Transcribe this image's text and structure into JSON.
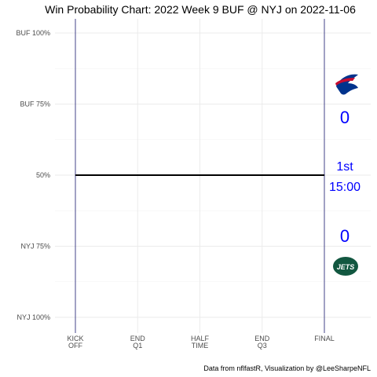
{
  "chart_data": {
    "type": "line",
    "title": "Win Probability Chart: 2022 Week 9 BUF @ NYJ on 2022-11-06",
    "caption": "Data from nflfastR, Visualization by @LeeSharpeNFL",
    "y_ticks": [
      {
        "value": 1.0,
        "label": "BUF 100%"
      },
      {
        "value": 0.75,
        "label": "BUF 75%"
      },
      {
        "value": 0.5,
        "label": "50%"
      },
      {
        "value": 0.25,
        "label": "NYJ 75%"
      },
      {
        "value": 0.0,
        "label": "NYJ 100%"
      }
    ],
    "x_ticks": [
      {
        "value": 0,
        "lines": [
          "KICK",
          "OFF"
        ]
      },
      {
        "value": 900,
        "lines": [
          "END",
          "Q1"
        ]
      },
      {
        "value": 1800,
        "lines": [
          "HALF",
          "TIME"
        ]
      },
      {
        "value": 2700,
        "lines": [
          "END",
          "Q3"
        ]
      },
      {
        "value": 3600,
        "lines": [
          "FINAL"
        ]
      }
    ],
    "xlim": [
      0,
      3600
    ],
    "ylim": [
      0,
      1
    ],
    "grid": true,
    "series": [
      {
        "values": [
          [
            0,
            0.5
          ],
          [
            3600,
            0.5
          ]
        ],
        "color": "#000000"
      }
    ],
    "kickoff_line_color": "#191970",
    "final_line_color": "#191970"
  },
  "scoreboard": {
    "home_team": "BUF",
    "home_score": "0",
    "away_team": "NYJ",
    "away_score": "0",
    "quarter": "1st",
    "clock": "15:00",
    "score_color": "#0000ff",
    "buf_logo": "bills-logo",
    "nyj_logo": "jets-logo",
    "nyj_logo_text": "JETS"
  }
}
